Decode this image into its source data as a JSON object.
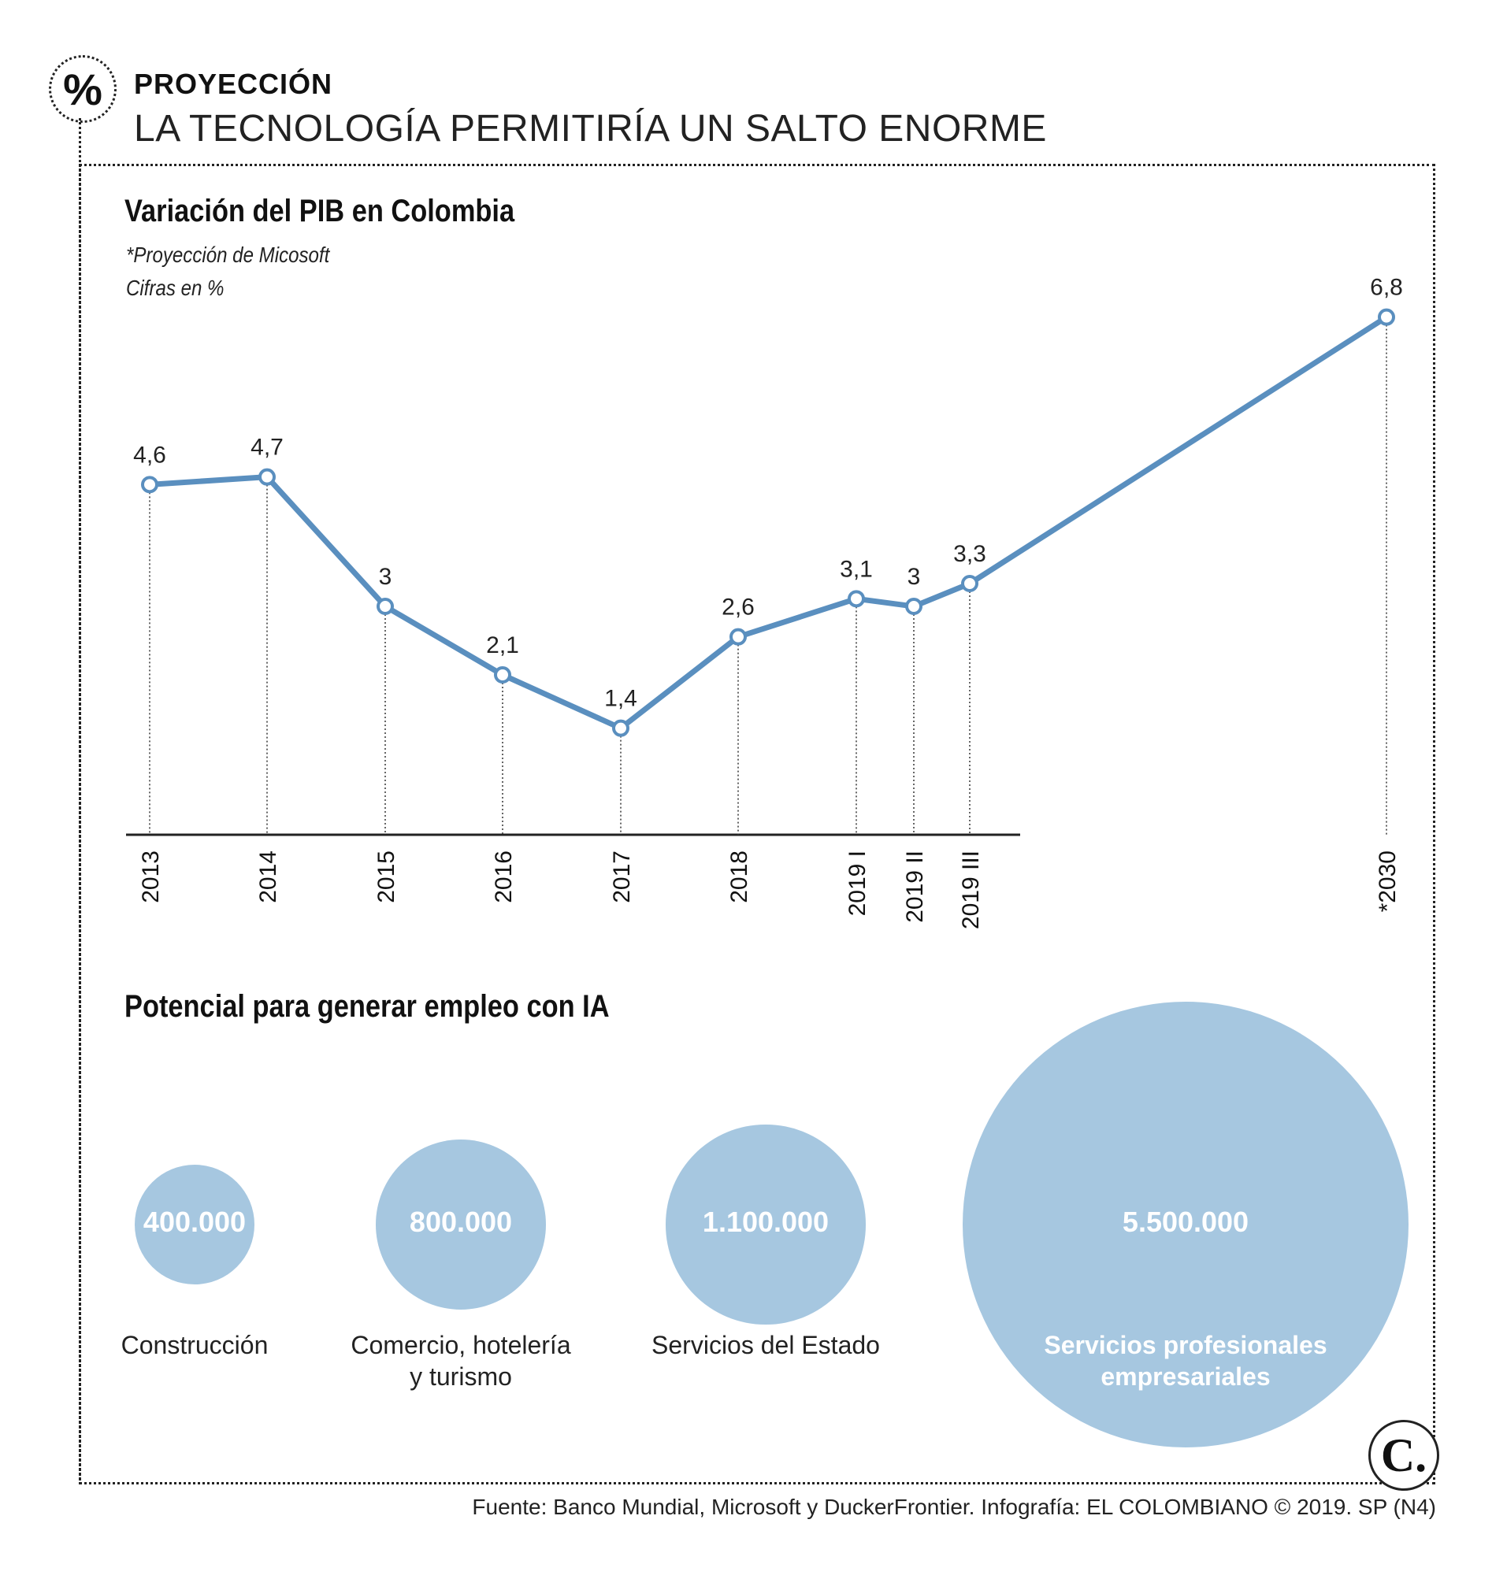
{
  "header": {
    "badge_symbol": "%",
    "kicker": "PROYECCIÓN",
    "headline": "LA TECNOLOGÍA PERMITIRÍA UN SALTO ENORME"
  },
  "accent_color": "#5a8fbf",
  "bubble_color": "#a6c7e0",
  "chart_data": [
    {
      "type": "line",
      "title": "Variación del PIB en Colombia",
      "subtitle_note": "*Proyección de Micosoft",
      "subtitle_units": "Cifras en %",
      "categories": [
        "2013",
        "2014",
        "2015",
        "2016",
        "2017",
        "2018",
        "2019 I",
        "2019 II",
        "2019 III",
        "*2030"
      ],
      "values": [
        4.6,
        4.7,
        3,
        2.1,
        1.4,
        2.6,
        3.1,
        3,
        3.3,
        6.8
      ],
      "value_labels": [
        "4,6",
        "4,7",
        "3",
        "2,1",
        "1,4",
        "2,6",
        "3,1",
        "3",
        "3,3",
        "6,8"
      ],
      "ylim": [
        0,
        7.5
      ],
      "xlabel": "",
      "ylabel": ""
    },
    {
      "type": "bubble",
      "title": "Potencial para generar empleo con IA",
      "categories": [
        "Construcción",
        "Comercio, hotelería\ny turismo",
        "Servicios del Estado",
        "Servicios profesionales\nempresariales"
      ],
      "values": [
        400000,
        800000,
        1100000,
        5500000
      ],
      "value_labels": [
        "400.000",
        "800.000",
        "1.100.000",
        "5.500.000"
      ]
    }
  ],
  "footer": {
    "source": "Fuente: Banco Mundial, Microsoft y DuckerFrontier. Infografía: EL COLOMBIANO © 2019. SP (N4)",
    "logo_letter": "C."
  }
}
